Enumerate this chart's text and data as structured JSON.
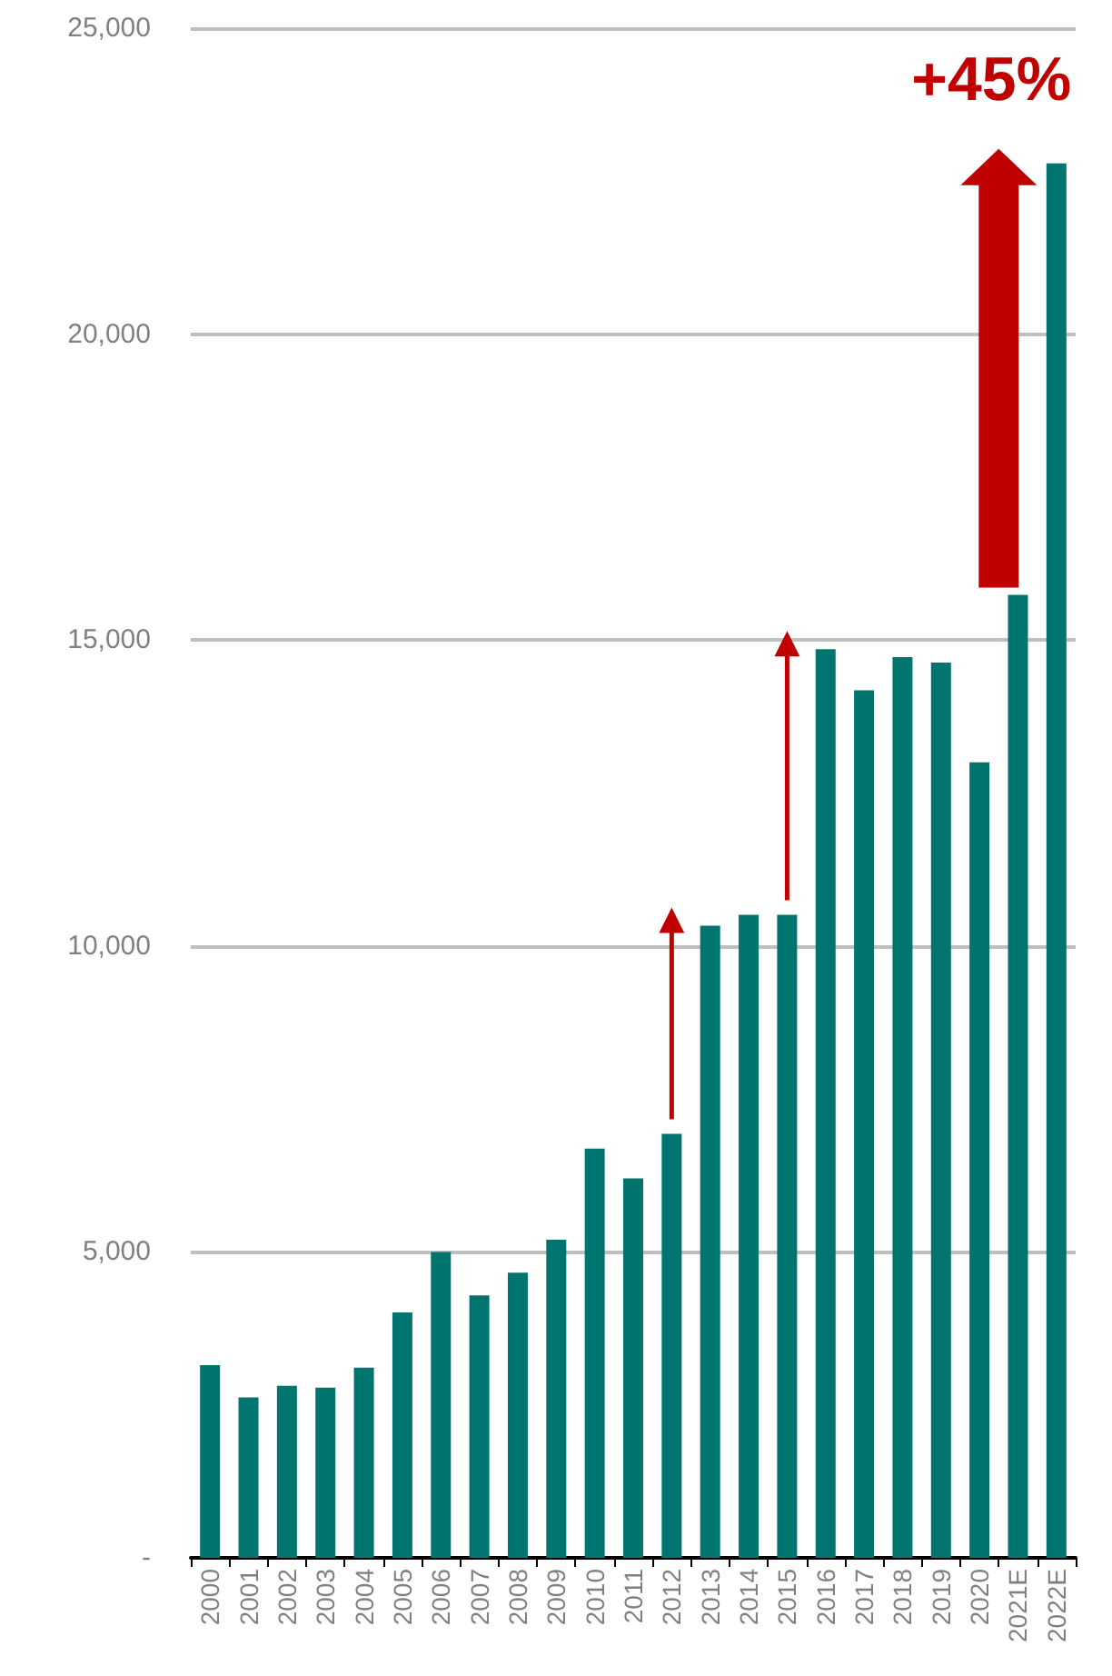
{
  "chart_data": {
    "type": "bar",
    "categories": [
      "2000",
      "2001",
      "2002",
      "2003",
      "2004",
      "2005",
      "2006",
      "2007",
      "2008",
      "2009",
      "2010",
      "2011",
      "2012",
      "2013",
      "2014",
      "2015",
      "2016",
      "2017",
      "2018",
      "2019",
      "2020",
      "2021E",
      "2022E"
    ],
    "values": [
      3150,
      2620,
      2810,
      2780,
      3110,
      4010,
      5000,
      4290,
      4660,
      5200,
      6690,
      6200,
      6930,
      10330,
      10510,
      10510,
      14850,
      14180,
      14720,
      14630,
      13000,
      15740,
      22790
    ],
    "color": "#00756f",
    "ylim": [
      0,
      25000
    ],
    "yticks": [
      {
        "value": 0,
        "label": "-"
      },
      {
        "value": 5000,
        "label": "5,000"
      },
      {
        "value": 10000,
        "label": "10,000"
      },
      {
        "value": 15000,
        "label": "15,000"
      },
      {
        "value": 20000,
        "label": "20,000"
      },
      {
        "value": 25000,
        "label": "25,000"
      }
    ],
    "grid": "y",
    "annotations": [
      "+45%"
    ]
  }
}
